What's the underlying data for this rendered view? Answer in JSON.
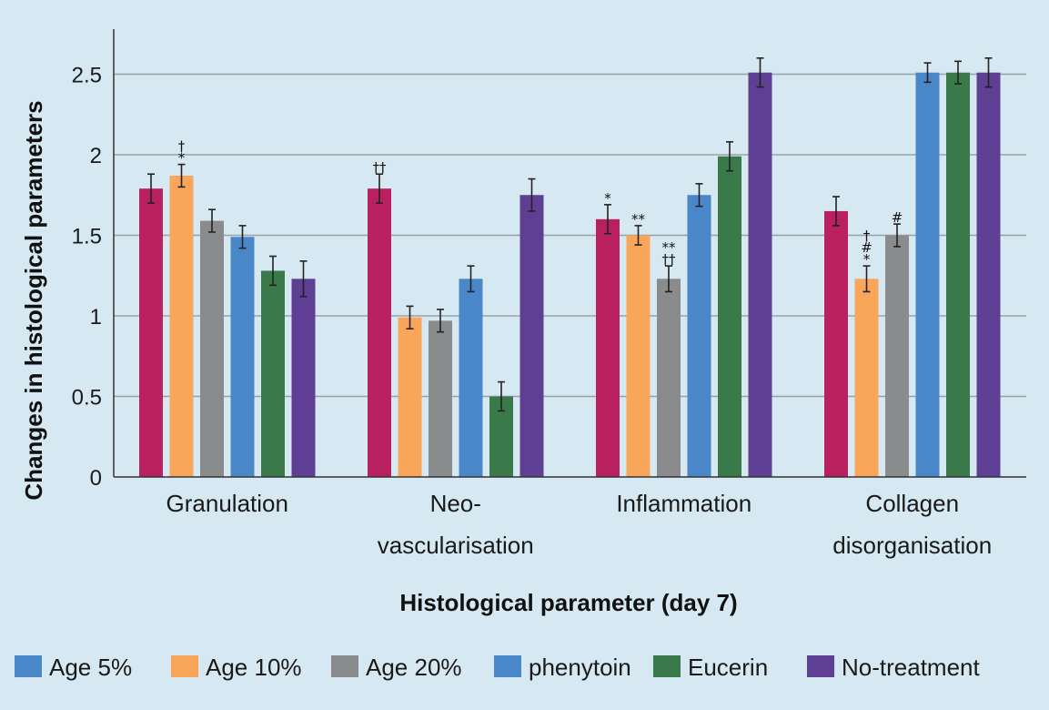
{
  "chart_data": {
    "type": "bar",
    "xlabel": "Histological parameter (day 7)",
    "ylabel": "Changes in histological parameters",
    "ylim": [
      0,
      2.75
    ],
    "yticks": [
      {
        "value": 0,
        "label": "0"
      },
      {
        "value": 0.5,
        "label": "0.5"
      },
      {
        "value": 1,
        "label": "1"
      },
      {
        "value": 1.5,
        "label": "1.5"
      },
      {
        "value": 2,
        "label": "2"
      },
      {
        "value": 2.5,
        "label": "2.5"
      }
    ],
    "grid": true,
    "legend_position": "bottom",
    "categories": [
      {
        "lines": [
          "Granulation"
        ]
      },
      {
        "lines": [
          "Neo-",
          "vascularisation"
        ]
      },
      {
        "lines": [
          "Inflammation"
        ]
      },
      {
        "lines": [
          "Collagen",
          "disorganisation"
        ]
      }
    ],
    "legend_colors": [
      "#4a87c8",
      "#f9a65a",
      "#8a8b8d",
      "#4a87c8",
      "#3a7a4a",
      "#5e3f93"
    ],
    "series": [
      {
        "name": "Age 5%",
        "color": "#b8205f",
        "values": [
          1.79,
          1.79,
          1.6,
          1.65
        ],
        "errors": [
          0.09,
          0.09,
          0.09,
          0.09
        ]
      },
      {
        "name": "Age 10%",
        "color": "#f9a65a",
        "values": [
          1.87,
          0.99,
          1.5,
          1.23
        ],
        "errors": [
          0.07,
          0.07,
          0.06,
          0.08
        ]
      },
      {
        "name": "Age 20%",
        "color": "#8a8b8d",
        "values": [
          1.59,
          0.97,
          1.23,
          1.5
        ],
        "errors": [
          0.07,
          0.07,
          0.08,
          0.07
        ]
      },
      {
        "name": "phenytoin",
        "color": "#4a87c8",
        "values": [
          1.49,
          1.23,
          1.75,
          2.51
        ],
        "errors": [
          0.07,
          0.08,
          0.07,
          0.06
        ]
      },
      {
        "name": "Eucerin",
        "color": "#3a7a4a",
        "values": [
          1.28,
          0.5,
          1.99,
          2.51
        ],
        "errors": [
          0.09,
          0.09,
          0.09,
          0.07
        ]
      },
      {
        "name": "No-treatment",
        "color": "#5e3f93",
        "values": [
          1.23,
          1.75,
          2.51,
          2.51
        ],
        "errors": [
          0.11,
          0.1,
          0.09,
          0.09
        ]
      }
    ],
    "annotations": [
      {
        "category": 0,
        "series": 1,
        "lines": [
          "†",
          "*"
        ]
      },
      {
        "category": 1,
        "series": 0,
        "lines": [
          "††"
        ]
      },
      {
        "category": 2,
        "series": 0,
        "lines": [
          "*"
        ]
      },
      {
        "category": 2,
        "series": 1,
        "lines": [
          "**"
        ]
      },
      {
        "category": 2,
        "series": 2,
        "lines": [
          "**",
          "††"
        ]
      },
      {
        "category": 3,
        "series": 1,
        "lines": [
          "†",
          "#",
          "*"
        ]
      },
      {
        "category": 3,
        "series": 2,
        "lines": [
          "#"
        ]
      }
    ]
  }
}
